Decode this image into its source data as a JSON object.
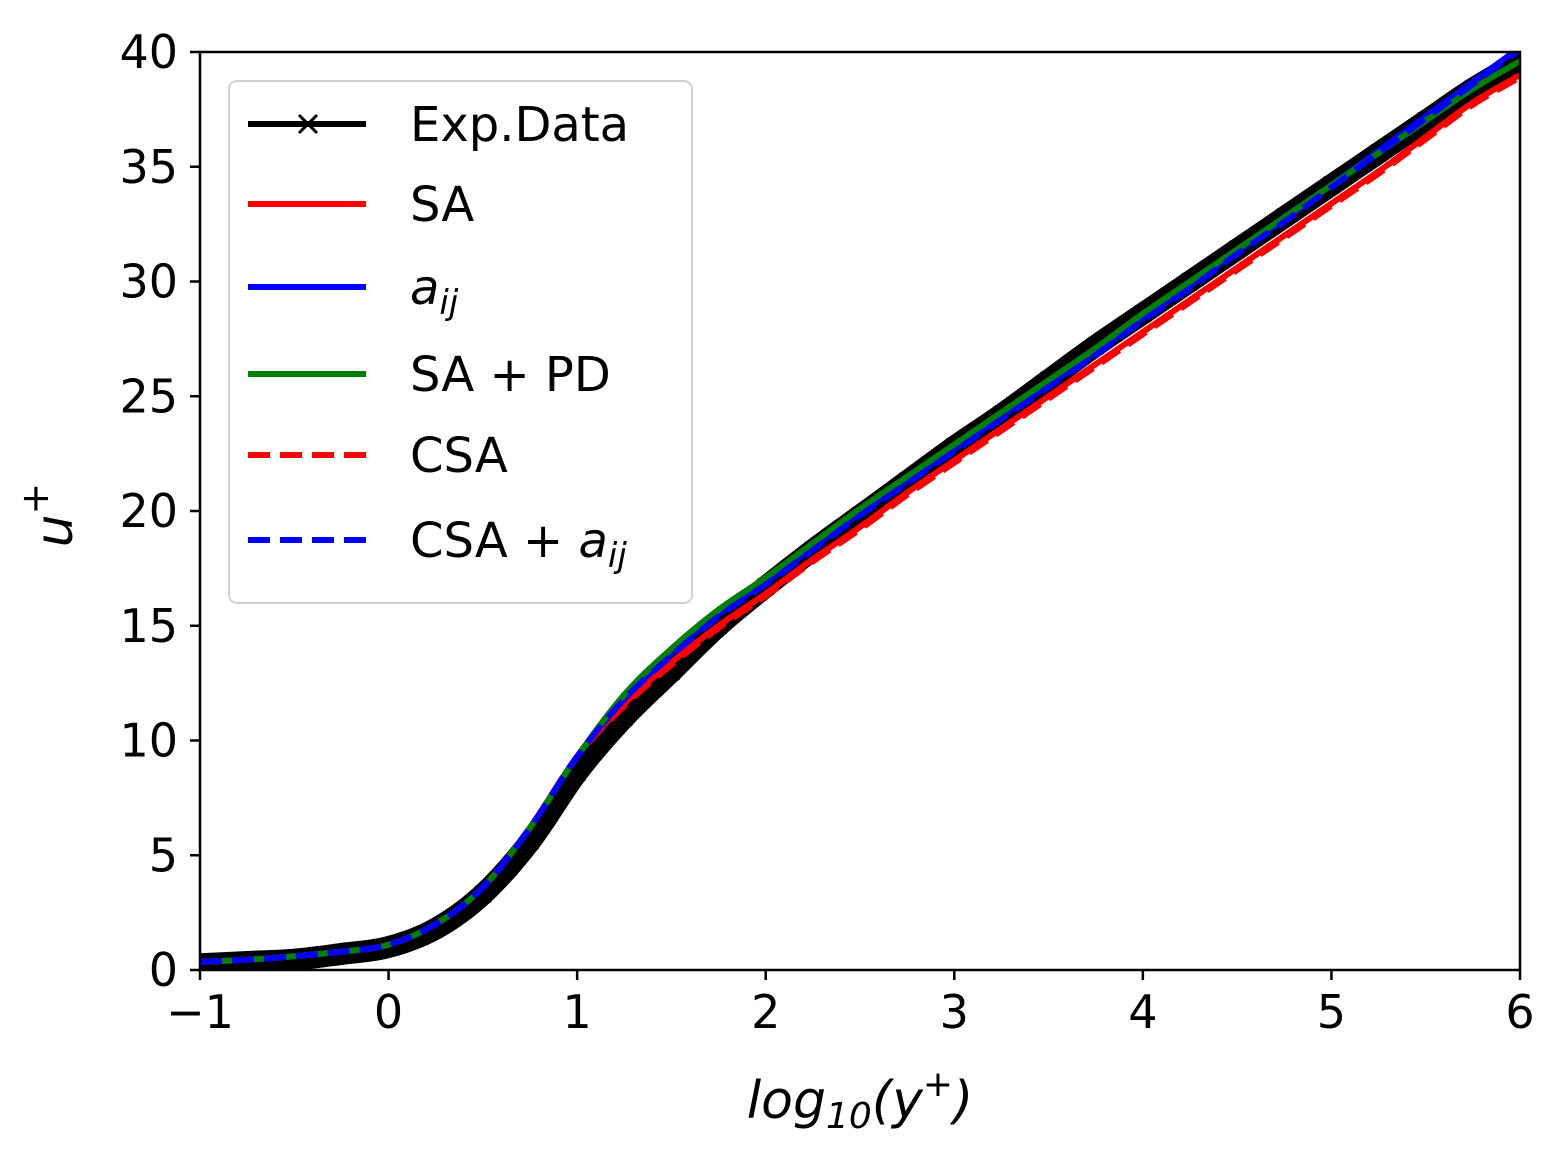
{
  "chart_data": {
    "type": "line",
    "title": "",
    "xlabel": "log10(y+)",
    "ylabel": "u+",
    "xlim": [
      -1,
      6
    ],
    "ylim": [
      0,
      40
    ],
    "xticks": [
      -1,
      0,
      1,
      2,
      3,
      4,
      5,
      6
    ],
    "yticks": [
      0,
      5,
      10,
      15,
      20,
      25,
      30,
      35,
      40
    ],
    "xtick_labels": [
      "−1",
      "0",
      "1",
      "2",
      "3",
      "4",
      "5",
      "6"
    ],
    "ytick_labels": [
      "0",
      "5",
      "10",
      "15",
      "20",
      "25",
      "30",
      "35",
      "40"
    ],
    "grid": false,
    "legend_placement": "top-left",
    "x": [
      -1,
      -0.75,
      -0.5,
      -0.25,
      0,
      0.25,
      0.5,
      0.75,
      1,
      1.25,
      1.5,
      1.75,
      2,
      2.25,
      2.5,
      2.75,
      3,
      3.25,
      3.5,
      3.75,
      4,
      4.25,
      4.5,
      4.75,
      5,
      5.25,
      5.5,
      5.75,
      6
    ],
    "series": [
      {
        "name": "Exp.Data",
        "color": "#000000",
        "style": "solid-x-markers",
        "values": [
          0.25,
          0.35,
          0.45,
          0.7,
          1.0,
          1.8,
          3.3,
          5.6,
          8.6,
          11.0,
          13.0,
          15.0,
          16.7,
          18.3,
          19.8,
          21.3,
          22.8,
          24.2,
          25.7,
          27.2,
          28.6,
          30.0,
          31.4,
          32.8,
          34.2,
          35.6,
          37.0,
          38.4,
          39.6
        ]
      },
      {
        "name": "SA",
        "color": "#ff0000",
        "style": "solid",
        "values": [
          0.35,
          0.45,
          0.6,
          0.8,
          1.1,
          2.0,
          3.6,
          6.2,
          9.3,
          11.6,
          13.4,
          15.0,
          16.4,
          17.9,
          19.3,
          20.8,
          22.2,
          23.6,
          25.0,
          26.4,
          27.8,
          29.2,
          30.6,
          32.0,
          33.4,
          34.8,
          36.3,
          37.8,
          39.0
        ]
      },
      {
        "name": "a_ij",
        "color": "#0000ff",
        "style": "solid",
        "values": [
          0.35,
          0.45,
          0.6,
          0.8,
          1.1,
          2.0,
          3.6,
          6.2,
          9.3,
          11.8,
          13.8,
          15.5,
          16.9,
          18.4,
          19.9,
          21.3,
          22.7,
          24.1,
          25.5,
          26.9,
          28.4,
          29.8,
          31.3,
          32.7,
          34.2,
          35.7,
          37.2,
          38.7,
          40.2
        ]
      },
      {
        "name": "SA + PD",
        "color": "#008000",
        "style": "solid",
        "values": [
          0.35,
          0.45,
          0.6,
          0.8,
          1.1,
          2.0,
          3.6,
          6.2,
          9.3,
          12.0,
          14.0,
          15.7,
          17.1,
          18.6,
          20.1,
          21.5,
          22.9,
          24.3,
          25.7,
          27.1,
          28.6,
          30.0,
          31.4,
          32.8,
          34.2,
          35.6,
          37.0,
          38.4,
          39.6
        ]
      },
      {
        "name": "CSA",
        "color": "#ff0000",
        "style": "dashed",
        "values": [
          0.35,
          0.45,
          0.6,
          0.8,
          1.1,
          2.0,
          3.6,
          6.2,
          9.3,
          11.5,
          13.3,
          14.9,
          16.3,
          17.8,
          19.2,
          20.7,
          22.1,
          23.5,
          24.9,
          26.3,
          27.7,
          29.1,
          30.5,
          31.9,
          33.3,
          34.7,
          36.2,
          37.7,
          38.9
        ]
      },
      {
        "name": "CSA + a_ij",
        "color": "#0000ff",
        "style": "dashed",
        "values": [
          0.35,
          0.45,
          0.6,
          0.8,
          1.1,
          2.0,
          3.6,
          6.2,
          9.3,
          11.8,
          13.7,
          15.4,
          16.8,
          18.3,
          19.8,
          21.2,
          22.6,
          24.0,
          25.4,
          26.8,
          28.3,
          29.7,
          31.2,
          32.6,
          34.1,
          35.6,
          37.1,
          38.6,
          40.1
        ]
      }
    ],
    "legend": {
      "entries": [
        {
          "label": "Exp.Data"
        },
        {
          "label": "SA"
        },
        {
          "label": "a",
          "sub": "ij"
        },
        {
          "label": "SA + PD"
        },
        {
          "label": "CSA"
        },
        {
          "label": "CSA + ",
          "italic": "a",
          "sub": "ij"
        }
      ]
    },
    "axis_label_parts": {
      "x_main": "log",
      "x_sub": "10",
      "x_rest": "(y",
      "x_sup": "+",
      "x_close": ")",
      "y_main": "u",
      "y_sup": "+"
    }
  }
}
